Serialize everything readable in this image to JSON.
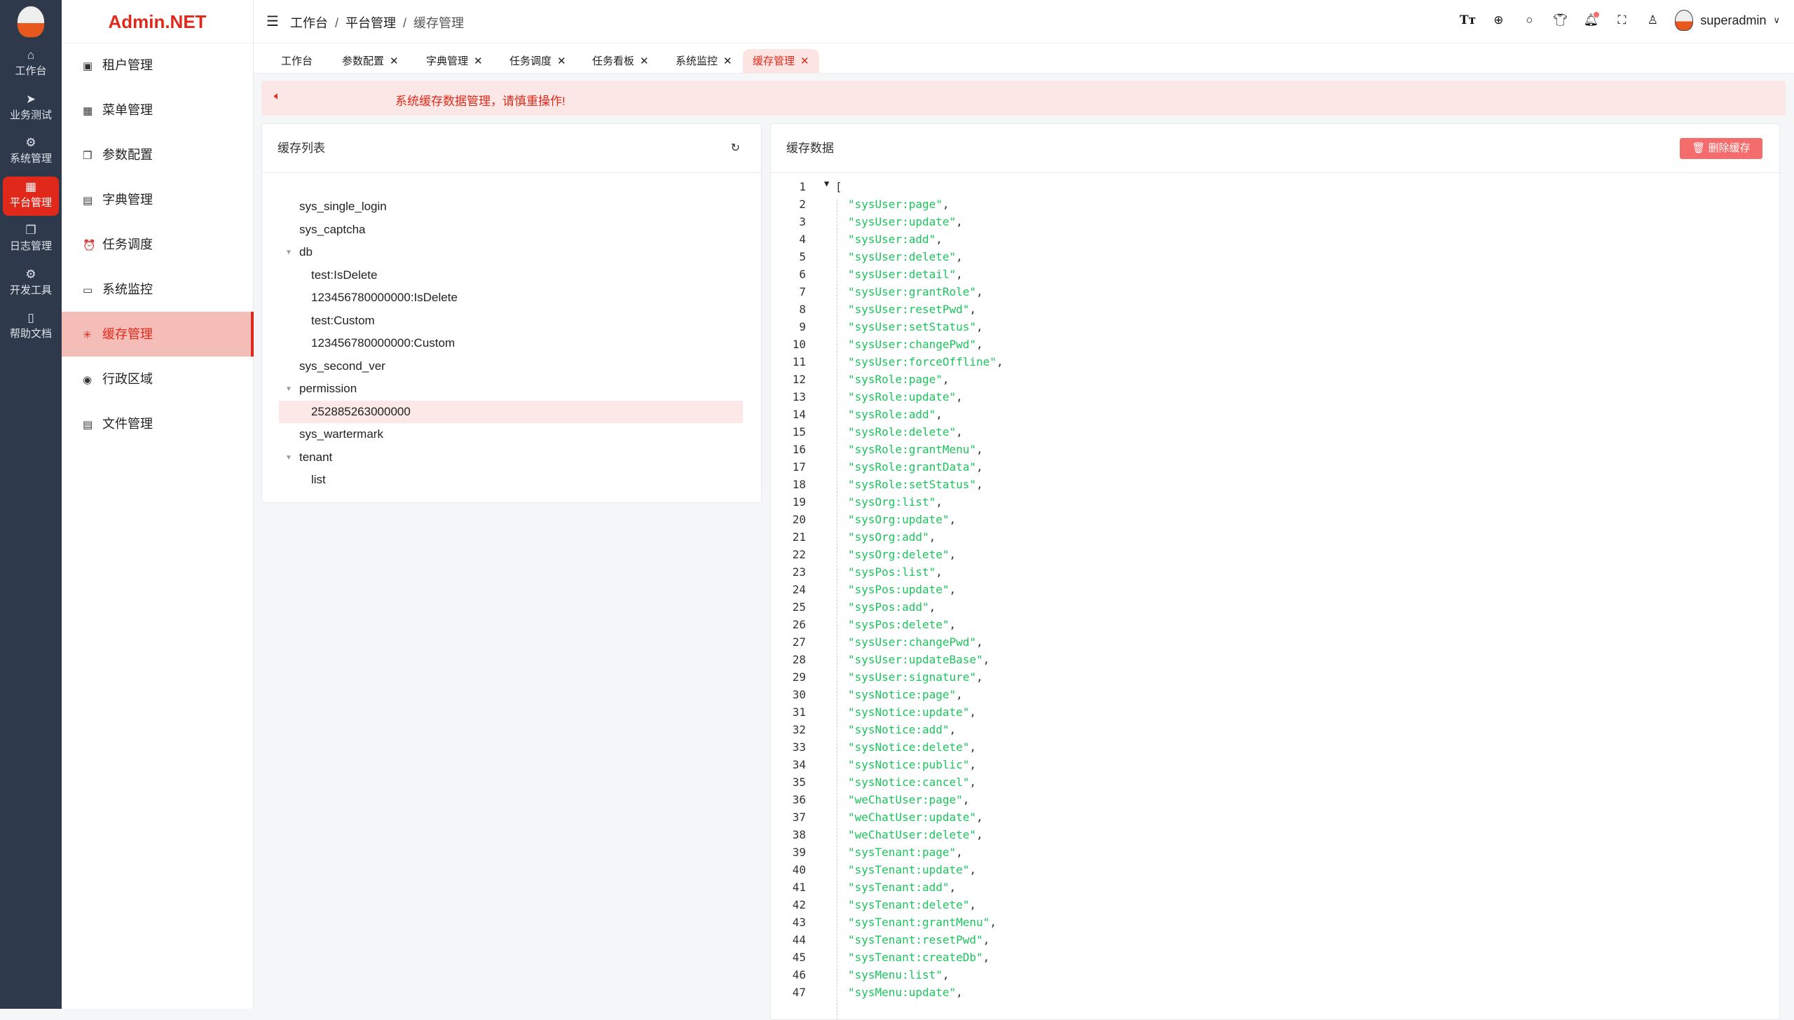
{
  "rail": {
    "items": [
      {
        "label": "工作台",
        "icon": "home-icon",
        "glyph": "⌂"
      },
      {
        "label": "业务测试",
        "icon": "send-icon",
        "glyph": "➤"
      },
      {
        "label": "系统管理",
        "icon": "gear-icon",
        "glyph": "⚙"
      },
      {
        "label": "平台管理",
        "icon": "grid-icon",
        "glyph": "▦",
        "active": true
      },
      {
        "label": "日志管理",
        "icon": "copy-icon",
        "glyph": "❐"
      },
      {
        "label": "开发工具",
        "icon": "chip-icon",
        "glyph": "⚙"
      },
      {
        "label": "帮助文档",
        "icon": "book-icon",
        "glyph": "▯"
      }
    ]
  },
  "brand": "Admin.NET",
  "menu": {
    "items": [
      {
        "label": "租户管理",
        "glyph": "▣"
      },
      {
        "label": "菜单管理",
        "glyph": "▦"
      },
      {
        "label": "参数配置",
        "glyph": "❐"
      },
      {
        "label": "字典管理",
        "glyph": "▤"
      },
      {
        "label": "任务调度",
        "glyph": "⏰"
      },
      {
        "label": "系统监控",
        "glyph": "▭"
      },
      {
        "label": "缓存管理",
        "glyph": "✳",
        "active": true
      },
      {
        "label": "行政区域",
        "glyph": "◉"
      },
      {
        "label": "文件管理",
        "glyph": "▤"
      }
    ]
  },
  "breadcrumb": [
    "工作台",
    "平台管理",
    "缓存管理"
  ],
  "header": {
    "username": "superadmin",
    "icons": [
      "font-size-icon",
      "language-icon",
      "search-icon",
      "skin-icon",
      "bell-icon",
      "fullscreen-icon",
      "user-icon"
    ]
  },
  "tabs": [
    {
      "label": "工作台",
      "closable": false
    },
    {
      "label": "参数配置",
      "closable": true
    },
    {
      "label": "字典管理",
      "closable": true
    },
    {
      "label": "任务调度",
      "closable": true
    },
    {
      "label": "任务看板",
      "closable": true
    },
    {
      "label": "系统监控",
      "closable": true
    },
    {
      "label": "缓存管理",
      "closable": true,
      "active": true
    }
  ],
  "close_glyph": "✕",
  "alert": {
    "text": "系统缓存数据管理，请慎重操作!"
  },
  "cache_list": {
    "title": "缓存列表",
    "nodes": [
      {
        "label": "sys_single_login",
        "level": 0
      },
      {
        "label": "sys_captcha",
        "level": 0
      },
      {
        "label": "db",
        "level": 0,
        "expanded": true
      },
      {
        "label": "test:IsDelete",
        "level": 1
      },
      {
        "label": "123456780000000:IsDelete",
        "level": 1
      },
      {
        "label": "test:Custom",
        "level": 1
      },
      {
        "label": "123456780000000:Custom",
        "level": 1
      },
      {
        "label": "sys_second_ver",
        "level": 0
      },
      {
        "label": "permission",
        "level": 0,
        "expanded": true
      },
      {
        "label": "252885263000000",
        "level": 1,
        "selected": true
      },
      {
        "label": "sys_wartermark",
        "level": 0
      },
      {
        "label": "tenant",
        "level": 0,
        "expanded": true
      },
      {
        "label": "list",
        "level": 1
      }
    ]
  },
  "cache_data": {
    "title": "缓存数据",
    "delete_label": "删除缓存",
    "open_bracket": "[",
    "lines": [
      "sysUser:page",
      "sysUser:update",
      "sysUser:add",
      "sysUser:delete",
      "sysUser:detail",
      "sysUser:grantRole",
      "sysUser:resetPwd",
      "sysUser:setStatus",
      "sysUser:changePwd",
      "sysUser:forceOffline",
      "sysRole:page",
      "sysRole:update",
      "sysRole:add",
      "sysRole:delete",
      "sysRole:grantMenu",
      "sysRole:grantData",
      "sysRole:setStatus",
      "sysOrg:list",
      "sysOrg:update",
      "sysOrg:add",
      "sysOrg:delete",
      "sysPos:list",
      "sysPos:update",
      "sysPos:add",
      "sysPos:delete",
      "sysUser:changePwd",
      "sysUser:updateBase",
      "sysUser:signature",
      "sysNotice:page",
      "sysNotice:update",
      "sysNotice:add",
      "sysNotice:delete",
      "sysNotice:public",
      "sysNotice:cancel",
      "weChatUser:page",
      "weChatUser:update",
      "weChatUser:delete",
      "sysTenant:page",
      "sysTenant:update",
      "sysTenant:add",
      "sysTenant:delete",
      "sysTenant:grantMenu",
      "sysTenant:resetPwd",
      "sysTenant:createDb",
      "sysMenu:list",
      "sysMenu:update"
    ]
  },
  "colors": {
    "accent": "#e1291b",
    "rail": "#2e3a4b",
    "string": "#1bc45c",
    "danger": "#f56c6c"
  }
}
